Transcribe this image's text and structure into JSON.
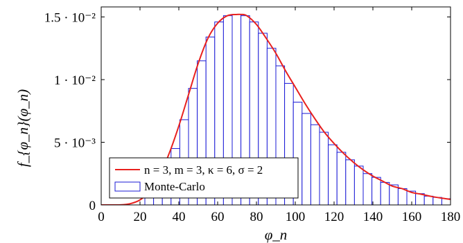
{
  "chart_data": {
    "type": "bar",
    "xlabel": "φ_n",
    "ylabel": "f_{φ_n}(φ_n)",
    "xlim": [
      0,
      180
    ],
    "ylim": [
      0,
      0.0158
    ],
    "xticks": [
      0,
      20,
      40,
      60,
      80,
      100,
      120,
      140,
      160,
      180
    ],
    "yticks": [
      {
        "value": 0,
        "label": "0"
      },
      {
        "value": 0.005,
        "label": "5 · 10⁻³"
      },
      {
        "value": 0.01,
        "label": "1 · 10⁻²"
      },
      {
        "value": 0.015,
        "label": "1.5 · 10⁻²"
      }
    ],
    "grid": false,
    "legend_position": "bottom-left",
    "series": [
      {
        "name": "n = 3, m = 3, κ = 6, σ = 2",
        "kind": "line",
        "color": "#e8201e",
        "x": [
          0,
          10,
          15,
          20,
          25,
          30,
          35,
          40,
          45,
          50,
          55,
          60,
          65,
          70,
          72,
          75,
          80,
          85,
          90,
          95,
          100,
          105,
          110,
          115,
          120,
          125,
          130,
          135,
          140,
          145,
          150,
          155,
          160,
          165,
          170,
          175,
          180
        ],
        "y": [
          0,
          1e-05,
          0.0001,
          0.0004,
          0.0011,
          0.0023,
          0.0041,
          0.0063,
          0.0088,
          0.0113,
          0.0133,
          0.0145,
          0.0151,
          0.0152,
          0.0152,
          0.0151,
          0.0144,
          0.0133,
          0.0121,
          0.0107,
          0.0094,
          0.0081,
          0.0069,
          0.0058,
          0.0049,
          0.0041,
          0.0034,
          0.0028,
          0.0023,
          0.0019,
          0.0015,
          0.0013,
          0.001,
          0.00085,
          0.00068,
          0.00055,
          0.00044
        ]
      },
      {
        "name": "Monte-Carlo",
        "kind": "bar",
        "color": "#1a1ad6",
        "bin_width": 4.5,
        "x": [
          24.75,
          29.25,
          33.75,
          38.25,
          42.75,
          47.25,
          51.75,
          56.25,
          60.75,
          65.25,
          69.75,
          74.25,
          78.75,
          83.25,
          87.75,
          92.25,
          96.75,
          101.25,
          105.75,
          110.25,
          114.75,
          119.25,
          123.75,
          128.25,
          132.75,
          137.25,
          141.75,
          146.25,
          150.75,
          155.25,
          159.75,
          164.25,
          168.75,
          173.25,
          177.75
        ],
        "values": [
          0.0007,
          0.0013,
          0.0029,
          0.0045,
          0.0068,
          0.0093,
          0.0115,
          0.0134,
          0.0146,
          0.0151,
          0.0152,
          0.0151,
          0.0146,
          0.0137,
          0.0125,
          0.0111,
          0.0097,
          0.0082,
          0.0073,
          0.0064,
          0.0058,
          0.0048,
          0.0042,
          0.0036,
          0.0031,
          0.0025,
          0.0022,
          0.0018,
          0.0016,
          0.0013,
          0.0011,
          0.0009,
          0.0007,
          0.0006,
          0.0005
        ]
      }
    ]
  }
}
